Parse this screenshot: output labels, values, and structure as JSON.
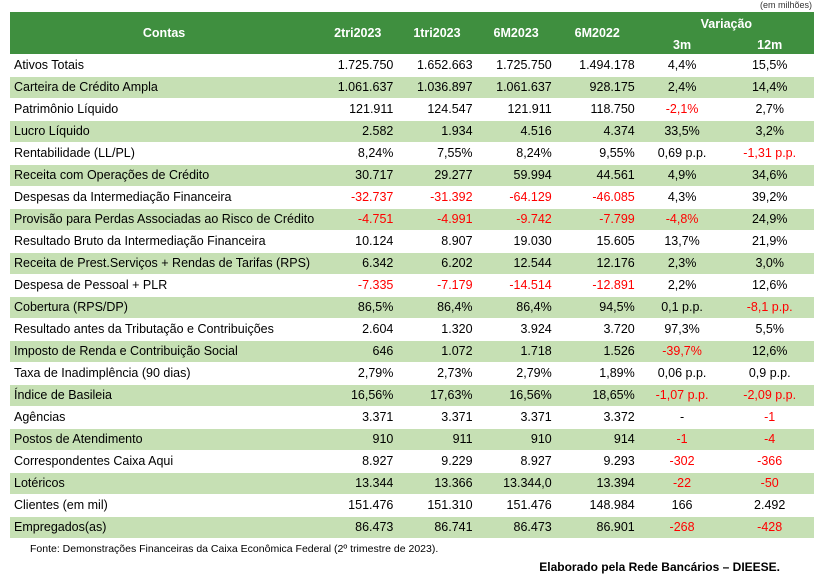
{
  "unit_note": "(em milhões)",
  "header": {
    "contas": "Contas",
    "cols": [
      "2tri2023",
      "1tri2023",
      "6M2023",
      "6M2022"
    ],
    "variacao": "Variação",
    "var_cols": [
      "3m",
      "12m"
    ]
  },
  "rows": [
    {
      "label": "Ativos Totais",
      "v": [
        "1.725.750",
        "1.652.663",
        "1.725.750",
        "1.494.178"
      ],
      "var": [
        "4,4%",
        "15,5%"
      ],
      "neg": [
        false,
        false,
        false,
        false,
        false,
        false
      ]
    },
    {
      "label": "Carteira de Crédito Ampla",
      "v": [
        "1.061.637",
        "1.036.897",
        "1.061.637",
        "928.175"
      ],
      "var": [
        "2,4%",
        "14,4%"
      ],
      "neg": [
        false,
        false,
        false,
        false,
        false,
        false
      ]
    },
    {
      "label": "Patrimônio Líquido",
      "v": [
        "121.911",
        "124.547",
        "121.911",
        "118.750"
      ],
      "var": [
        "-2,1%",
        "2,7%"
      ],
      "neg": [
        false,
        false,
        false,
        false,
        true,
        false
      ]
    },
    {
      "label": "Lucro Líquido",
      "v": [
        "2.582",
        "1.934",
        "4.516",
        "4.374"
      ],
      "var": [
        "33,5%",
        "3,2%"
      ],
      "neg": [
        false,
        false,
        false,
        false,
        false,
        false
      ]
    },
    {
      "label": "Rentabilidade (LL/PL)",
      "v": [
        "8,24%",
        "7,55%",
        "8,24%",
        "9,55%"
      ],
      "var": [
        "0,69 p.p.",
        "-1,31 p.p."
      ],
      "neg": [
        false,
        false,
        false,
        false,
        false,
        true
      ]
    },
    {
      "label": "Receita com Operações de Crédito",
      "v": [
        "30.717",
        "29.277",
        "59.994",
        "44.561"
      ],
      "var": [
        "4,9%",
        "34,6%"
      ],
      "neg": [
        false,
        false,
        false,
        false,
        false,
        false
      ]
    },
    {
      "label": "Despesas da Intermediação Financeira",
      "v": [
        "-32.737",
        "-31.392",
        "-64.129",
        "-46.085"
      ],
      "var": [
        "4,3%",
        "39,2%"
      ],
      "neg": [
        true,
        true,
        true,
        true,
        false,
        false
      ]
    },
    {
      "label": "Provisão para Perdas Associadas ao Risco de Crédito",
      "v": [
        "-4.751",
        "-4.991",
        "-9.742",
        "-7.799"
      ],
      "var": [
        "-4,8%",
        "24,9%"
      ],
      "neg": [
        true,
        true,
        true,
        true,
        true,
        false
      ]
    },
    {
      "label": "Resultado Bruto da Intermediação Financeira",
      "v": [
        "10.124",
        "8.907",
        "19.030",
        "15.605"
      ],
      "var": [
        "13,7%",
        "21,9%"
      ],
      "neg": [
        false,
        false,
        false,
        false,
        false,
        false
      ]
    },
    {
      "label": "Receita de Prest.Serviços + Rendas de Tarifas (RPS)",
      "v": [
        "6.342",
        "6.202",
        "12.544",
        "12.176"
      ],
      "var": [
        "2,3%",
        "3,0%"
      ],
      "neg": [
        false,
        false,
        false,
        false,
        false,
        false
      ]
    },
    {
      "label": "Despesa de Pessoal + PLR",
      "v": [
        "-7.335",
        "-7.179",
        "-14.514",
        "-12.891"
      ],
      "var": [
        "2,2%",
        "12,6%"
      ],
      "neg": [
        true,
        true,
        true,
        true,
        false,
        false
      ]
    },
    {
      "label": "Cobertura (RPS/DP)",
      "v": [
        "86,5%",
        "86,4%",
        "86,4%",
        "94,5%"
      ],
      "var": [
        "0,1 p.p.",
        "-8,1 p.p."
      ],
      "neg": [
        false,
        false,
        false,
        false,
        false,
        true
      ]
    },
    {
      "label": "Resultado antes da Tributação e Contribuições",
      "v": [
        "2.604",
        "1.320",
        "3.924",
        "3.720"
      ],
      "var": [
        "97,3%",
        "5,5%"
      ],
      "neg": [
        false,
        false,
        false,
        false,
        false,
        false
      ]
    },
    {
      "label": "Imposto de Renda e Contribuição Social",
      "v": [
        "646",
        "1.072",
        "1.718",
        "1.526"
      ],
      "var": [
        "-39,7%",
        "12,6%"
      ],
      "neg": [
        false,
        false,
        false,
        false,
        true,
        false
      ]
    },
    {
      "label": "Taxa de Inadimplência (90 dias)",
      "v": [
        "2,79%",
        "2,73%",
        "2,79%",
        "1,89%"
      ],
      "var": [
        "0,06 p.p.",
        "0,9 p.p."
      ],
      "neg": [
        false,
        false,
        false,
        false,
        false,
        false
      ]
    },
    {
      "label": "Índice de Basileia",
      "v": [
        "16,56%",
        "17,63%",
        "16,56%",
        "18,65%"
      ],
      "var": [
        "-1,07 p.p.",
        "-2,09 p.p."
      ],
      "neg": [
        false,
        false,
        false,
        false,
        true,
        true
      ]
    },
    {
      "label": "Agências",
      "v": [
        "3.371",
        "3.371",
        "3.371",
        "3.372"
      ],
      "var": [
        "-",
        "-1"
      ],
      "neg": [
        false,
        false,
        false,
        false,
        false,
        true
      ]
    },
    {
      "label": "Postos de Atendimento",
      "v": [
        "910",
        "911",
        "910",
        "914"
      ],
      "var": [
        "-1",
        "-4"
      ],
      "neg": [
        false,
        false,
        false,
        false,
        true,
        true
      ]
    },
    {
      "label": "Correspondentes Caixa Aqui",
      "v": [
        "8.927",
        "9.229",
        "8.927",
        "9.293"
      ],
      "var": [
        "-302",
        "-366"
      ],
      "neg": [
        false,
        false,
        false,
        false,
        true,
        true
      ]
    },
    {
      "label": "Lotéricos",
      "v": [
        "13.344",
        "13.366",
        "13.344,0",
        "13.394"
      ],
      "var": [
        "-22",
        "-50"
      ],
      "neg": [
        false,
        false,
        false,
        false,
        true,
        true
      ]
    },
    {
      "label": "Clientes (em mil)",
      "v": [
        "151.476",
        "151.310",
        "151.476",
        "148.984"
      ],
      "var": [
        "166",
        "2.492"
      ],
      "neg": [
        false,
        false,
        false,
        false,
        false,
        false
      ]
    },
    {
      "label": "Empregados(as)",
      "v": [
        "86.473",
        "86.741",
        "86.473",
        "86.901"
      ],
      "var": [
        "-268",
        "-428"
      ],
      "neg": [
        false,
        false,
        false,
        false,
        true,
        true
      ]
    }
  ],
  "source": "Fonte: Demonstrações Financeiras da Caixa Econômica Federal (2º trimestre de 2023).",
  "credit": "Elaborado pela Rede Bancários – DIEESE.",
  "colors": {
    "header_bg": "#3f8f3f",
    "alt_row_bg": "#c6e0b4",
    "negative": "#ff0000"
  }
}
